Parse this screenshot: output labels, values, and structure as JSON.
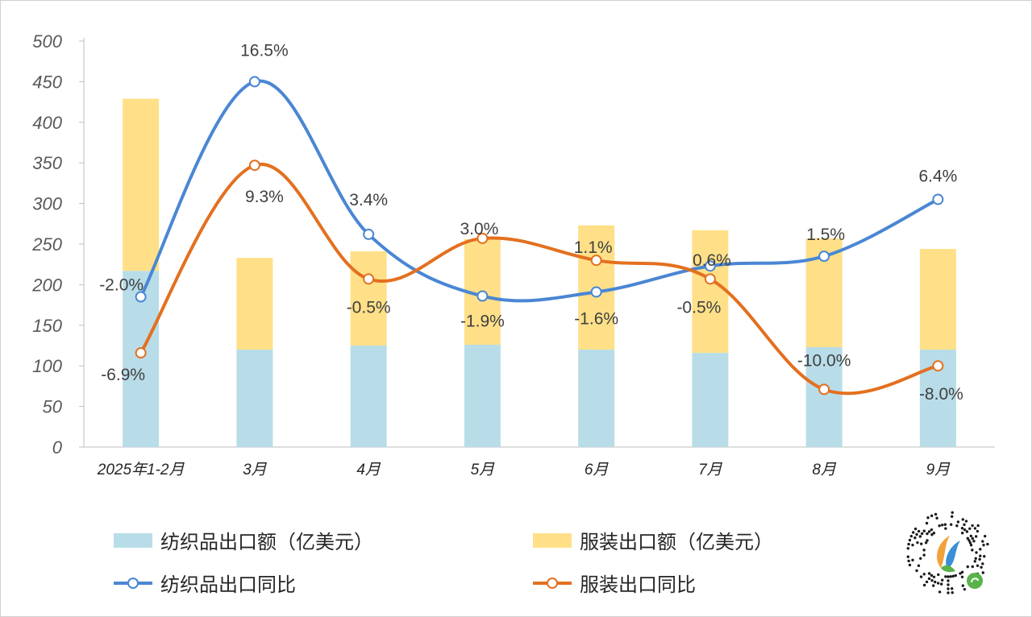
{
  "chart_data": {
    "type": "bar",
    "categories": [
      "2025年1-2月",
      "3月",
      "4月",
      "5月",
      "6月",
      "7月",
      "8月",
      "9月"
    ],
    "ylim": [
      0,
      500
    ],
    "yticks": [
      0,
      50,
      100,
      150,
      200,
      250,
      300,
      350,
      400,
      450,
      500
    ],
    "grid": false,
    "legend_position": "bottom",
    "stacked": true,
    "series": [
      {
        "name": "纺织品出口额（亿美元）",
        "kind": "bar",
        "color": "#b8dde8",
        "values": [
          217,
          120,
          125,
          126,
          120,
          116,
          123,
          120
        ]
      },
      {
        "name": "服装出口额（亿美元）",
        "kind": "bar",
        "color": "#ffe088",
        "values": [
          212,
          113,
          116,
          130,
          153,
          151,
          134,
          124
        ]
      },
      {
        "name": "纺织品出口同比",
        "kind": "line",
        "color": "#4a86d4",
        "position_values": [
          185,
          450,
          262,
          186,
          191,
          223,
          235,
          305
        ],
        "labels": [
          "-2.0%",
          "16.5%",
          "3.4%",
          "-1.9%",
          "-1.6%",
          "0.6%",
          "1.5%",
          "6.4%"
        ]
      },
      {
        "name": "服装出口同比",
        "kind": "line",
        "color": "#e3701f",
        "position_values": [
          116,
          347,
          207,
          257,
          230,
          207,
          71,
          100
        ],
        "labels": [
          "-6.9%",
          "9.3%",
          "-0.5%",
          "3.0%",
          "1.1%",
          "-0.5%",
          "-10.0%",
          "-8.0%"
        ]
      }
    ]
  },
  "legend": {
    "textile_amount": "纺织品出口额（亿美元）",
    "apparel_amount": "服装出口额（亿美元）",
    "textile_yoy": "纺织品出口同比",
    "apparel_yoy": "服装出口同比"
  },
  "qr_icon": "mini-program-qr-code"
}
